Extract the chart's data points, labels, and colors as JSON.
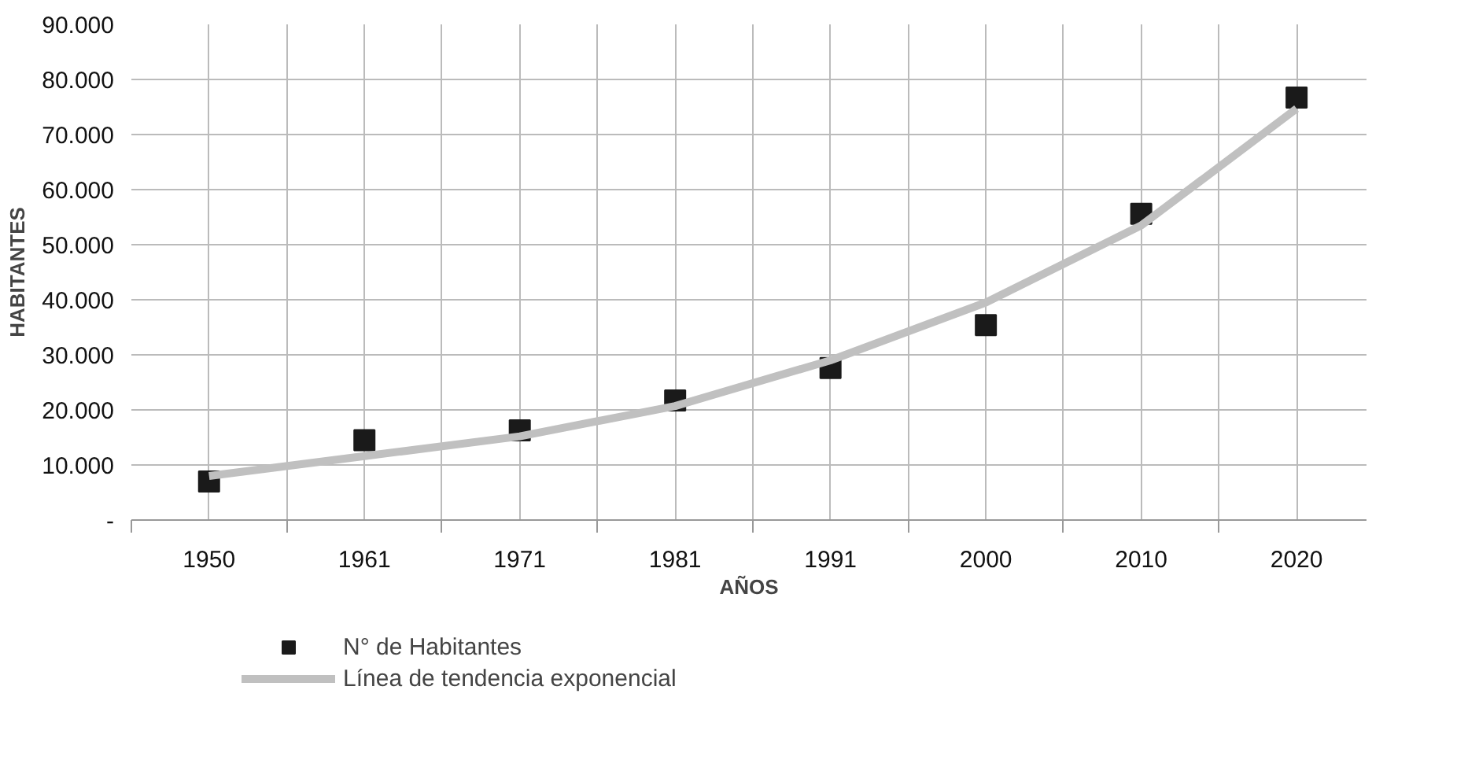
{
  "chart_data": {
    "type": "scatter",
    "xlabel": "AÑOS",
    "ylabel": "HABITANTES",
    "categories": [
      "1950",
      "1961",
      "1971",
      "1981",
      "1991",
      "2000",
      "2010",
      "2020"
    ],
    "series": [
      {
        "name": "N° de Habitantes",
        "type": "scatter",
        "marker": "square",
        "color": "#1a1a1a",
        "values": [
          7000,
          14500,
          16300,
          21700,
          27600,
          35400,
          55600,
          76700
        ]
      },
      {
        "name": "Línea de tendencia exponencial",
        "type": "line",
        "line_style": "solid",
        "color": "#c0c0c0",
        "values": [
          8000,
          11600,
          15200,
          20700,
          29000,
          39500,
          53500,
          74700
        ]
      }
    ],
    "ylim": [
      0,
      90000
    ],
    "yticks": [
      {
        "value": 0,
        "label": "-"
      },
      {
        "value": 10000,
        "label": "10.000"
      },
      {
        "value": 20000,
        "label": "20.000"
      },
      {
        "value": 30000,
        "label": "30.000"
      },
      {
        "value": 40000,
        "label": "40.000"
      },
      {
        "value": 50000,
        "label": "50.000"
      },
      {
        "value": 60000,
        "label": "60.000"
      },
      {
        "value": 70000,
        "label": "70.000"
      },
      {
        "value": 80000,
        "label": "80.000"
      },
      {
        "value": 90000,
        "label": "90.000"
      }
    ],
    "grid": true,
    "legend": "bottom left"
  }
}
